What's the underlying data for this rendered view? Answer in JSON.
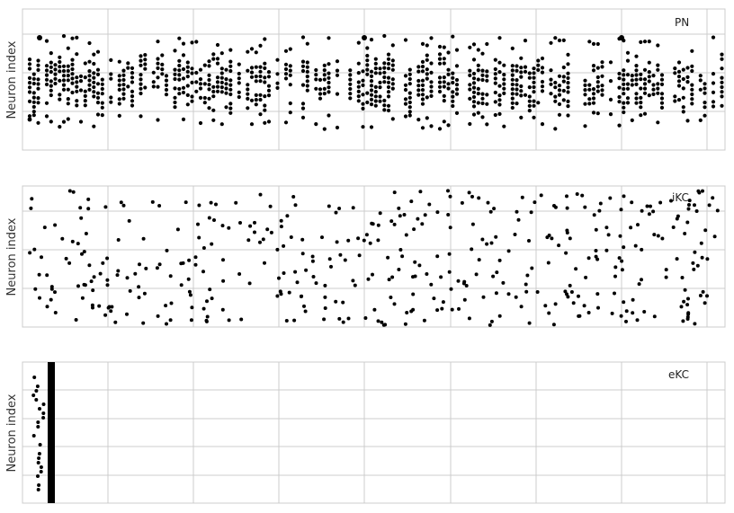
{
  "chart_data": [
    {
      "type": "scatter",
      "title": "PN",
      "ylabel": "Neuron index",
      "xlabel": "",
      "grid": true,
      "style": "raster",
      "color": "#000000",
      "density": "dense"
    },
    {
      "type": "scatter",
      "title": "iKC",
      "ylabel": "Neuron index",
      "xlabel": "",
      "grid": true,
      "style": "raster",
      "color": "#000000",
      "density": "sparse"
    },
    {
      "type": "scatter",
      "title": "eKC",
      "ylabel": "Neuron index",
      "xlabel": "",
      "grid": true,
      "style": "raster",
      "color": "#000000",
      "density": "burst-at-start"
    }
  ],
  "colors": {
    "grid": "#cccccc",
    "frame": "#cccccc",
    "marker": "#000000"
  }
}
